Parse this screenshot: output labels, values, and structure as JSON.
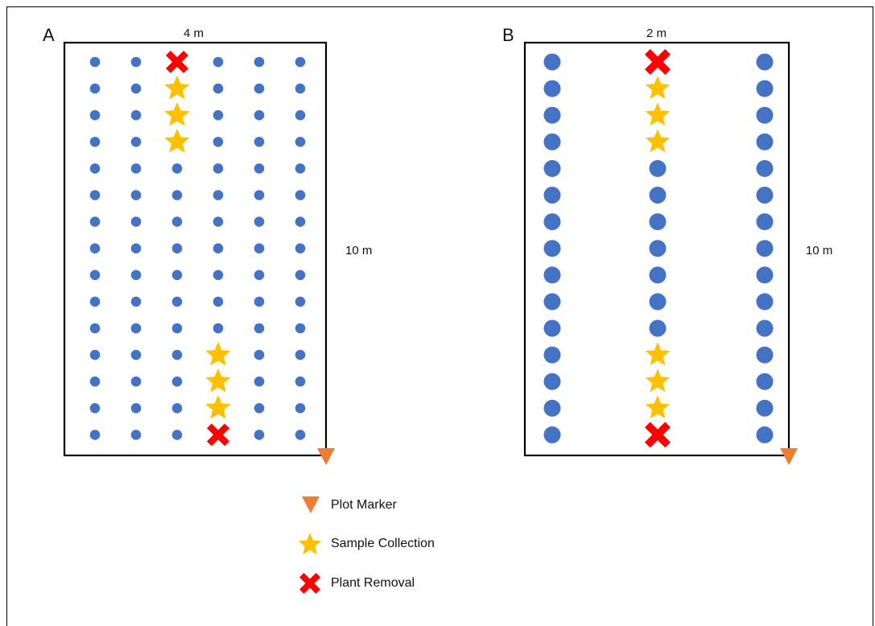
{
  "colors": {
    "plant": "#4472C4",
    "sample": "#FFC000",
    "removal": "#FF0000",
    "marker": "#ED7D31"
  },
  "icons": {
    "plant": "circle",
    "sample": "star-icon",
    "removal": "x-mark-icon",
    "marker": "triangle-down-icon"
  },
  "panels": [
    {
      "id": "a",
      "letter": "A",
      "width_label": "4 m",
      "height_label": "10 m",
      "rows": 15,
      "cols": 6,
      "sample_cells": [
        [
          1,
          2
        ],
        [
          2,
          2
        ],
        [
          3,
          2
        ],
        [
          11,
          3
        ],
        [
          12,
          3
        ],
        [
          13,
          3
        ]
      ],
      "removal_cells": [
        [
          0,
          2
        ],
        [
          14,
          3
        ]
      ]
    },
    {
      "id": "b",
      "letter": "B",
      "width_label": "2 m",
      "height_label": "10 m",
      "rows": 15,
      "cols": 3,
      "sample_cells": [
        [
          1,
          1
        ],
        [
          2,
          1
        ],
        [
          3,
          1
        ],
        [
          11,
          1
        ],
        [
          12,
          1
        ],
        [
          13,
          1
        ]
      ],
      "removal_cells": [
        [
          0,
          1
        ],
        [
          14,
          1
        ]
      ]
    }
  ],
  "legend": [
    {
      "key": "marker",
      "label": "Plot Marker"
    },
    {
      "key": "sample",
      "label": "Sample Collection"
    },
    {
      "key": "removal",
      "label": "Plant Removal"
    }
  ]
}
